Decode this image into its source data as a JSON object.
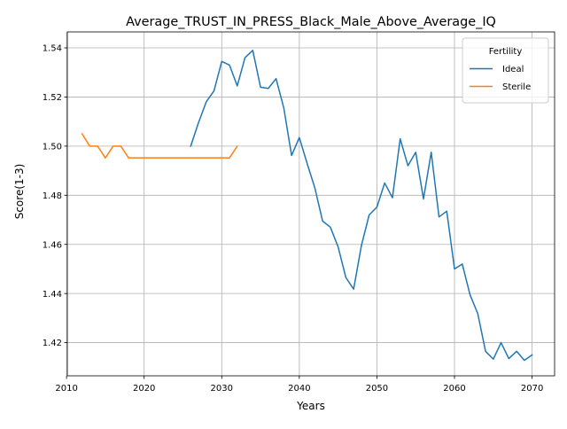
{
  "chart_data": {
    "type": "line",
    "title": "Average_TRUST_IN_PRESS_Black_Male_Above_Average_IQ",
    "xlabel": "Years",
    "ylabel": "Score(1-3)",
    "xlim": [
      2010.1,
      2072.9
    ],
    "ylim": [
      1.4065,
      1.5465
    ],
    "xticks": [
      2010,
      2020,
      2030,
      2040,
      2050,
      2060,
      2070
    ],
    "xtick_labels": [
      "2010",
      "2020",
      "2030",
      "2040",
      "2050",
      "2060",
      "2070"
    ],
    "yticks": [
      1.42,
      1.44,
      1.46,
      1.48,
      1.5,
      1.52,
      1.54
    ],
    "ytick_labels": [
      "1.42",
      "1.44",
      "1.46",
      "1.48",
      "1.50",
      "1.52",
      "1.54"
    ],
    "grid": true,
    "legend": {
      "title": "Fertility",
      "placement": "top-right"
    },
    "series": [
      {
        "name": "Ideal",
        "color": "#1f77b4",
        "x": [
          2026,
          2027,
          2028,
          2029,
          2030,
          2031,
          2032,
          2033,
          2034,
          2035,
          2036,
          2037,
          2038,
          2039,
          2040,
          2041,
          2042,
          2043,
          2044,
          2045,
          2046,
          2047,
          2048,
          2049,
          2050,
          2051,
          2052,
          2053,
          2054,
          2055,
          2056,
          2057,
          2058,
          2059,
          2060,
          2061,
          2062,
          2063,
          2064,
          2065,
          2066,
          2067,
          2068,
          2069,
          2070
        ],
        "y": [
          1.5,
          1.5095,
          1.518,
          1.5225,
          1.5345,
          1.533,
          1.5245,
          1.536,
          1.539,
          1.524,
          1.5235,
          1.5275,
          1.5155,
          1.4962,
          1.5035,
          1.493,
          1.483,
          1.4695,
          1.467,
          1.459,
          1.4465,
          1.4418,
          1.4595,
          1.472,
          1.4752,
          1.485,
          1.479,
          1.503,
          1.492,
          1.4975,
          1.4785,
          1.4975,
          1.4712,
          1.4735,
          1.45,
          1.452,
          1.4395,
          1.4318,
          1.4165,
          1.4133,
          1.42,
          1.4135,
          1.4165,
          1.4128,
          1.415
        ]
      },
      {
        "name": "Sterile",
        "color": "#ff7f0e",
        "x": [
          2012,
          2013,
          2014,
          2015,
          2016,
          2017,
          2018,
          2019,
          2020,
          2021,
          2022,
          2023,
          2024,
          2025,
          2026,
          2027,
          2028,
          2029,
          2030,
          2031,
          2032
        ],
        "y": [
          1.505,
          1.5,
          1.5,
          1.4952,
          1.5,
          1.5,
          1.4952,
          1.4952,
          1.4952,
          1.4952,
          1.4952,
          1.4952,
          1.4952,
          1.4952,
          1.4952,
          1.4952,
          1.4952,
          1.4952,
          1.4952,
          1.4952,
          1.5
        ]
      }
    ]
  }
}
